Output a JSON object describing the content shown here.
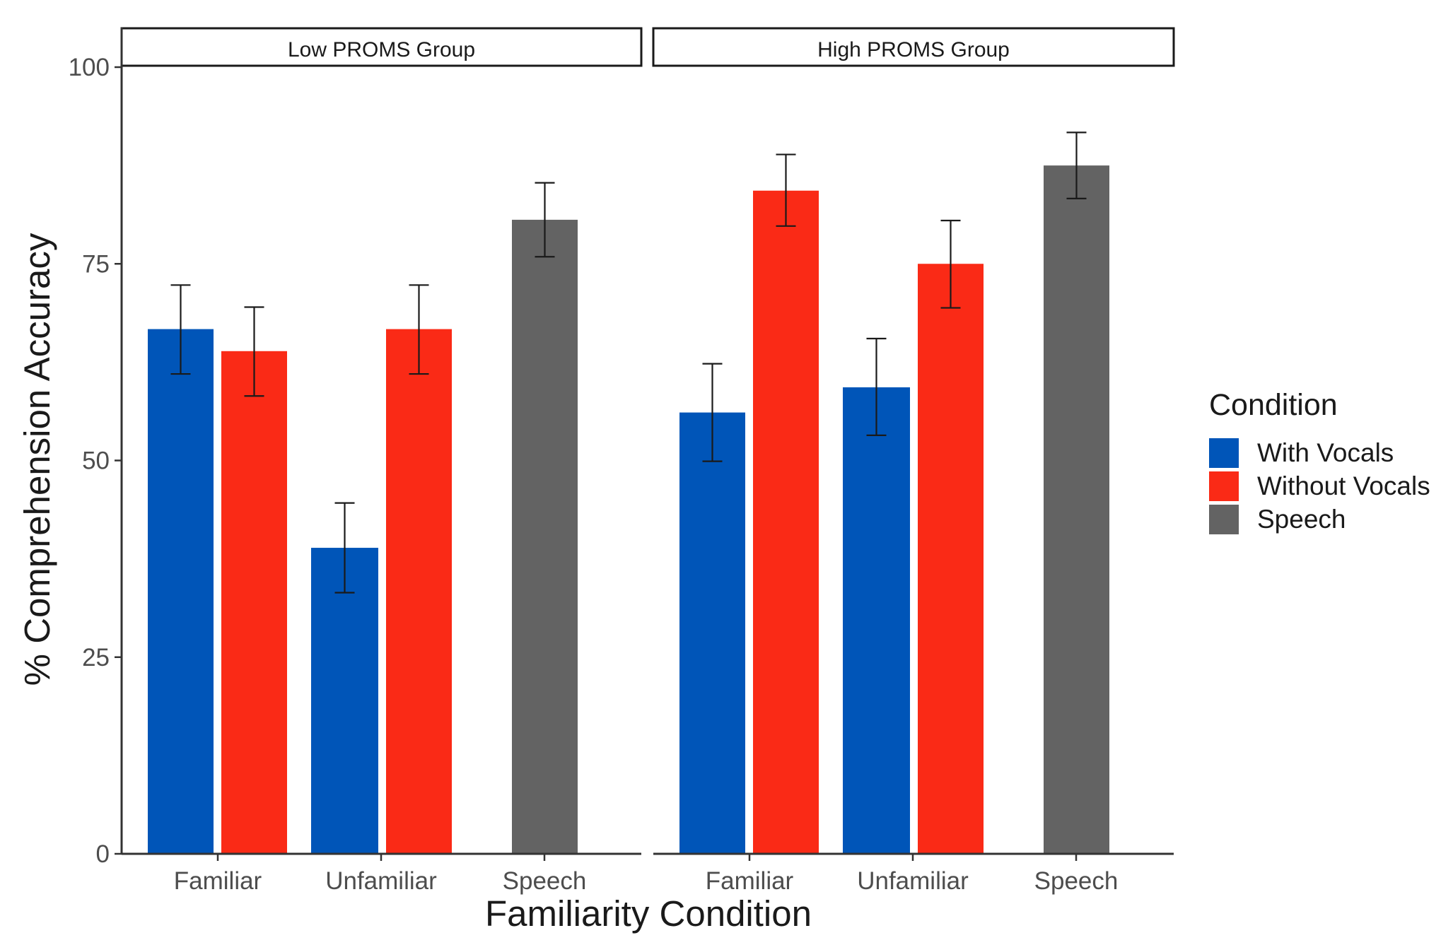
{
  "chart_data": {
    "type": "bar",
    "xlabel": "Familiarity Condition",
    "ylabel": "% Comprehension Accuracy",
    "ylim": [
      0,
      100
    ],
    "yticks": [
      0,
      25,
      50,
      75,
      100
    ],
    "categories": [
      "Familiar",
      "Unfamiliar",
      "Speech"
    ],
    "legend": {
      "title": "Condition",
      "position": "right",
      "entries": [
        {
          "name": "With Vocals",
          "color": "#0055b8"
        },
        {
          "name": "Without Vocals",
          "color": "#fa2a16"
        },
        {
          "name": "Speech",
          "color": "#636363"
        }
      ]
    },
    "panels": [
      {
        "title": "Low PROMS Group",
        "bars": [
          {
            "category": "Familiar",
            "series": "With Vocals",
            "value": 66.7,
            "error_low": 61.0,
            "error_high": 72.3
          },
          {
            "category": "Familiar",
            "series": "Without Vocals",
            "value": 63.9,
            "error_low": 58.2,
            "error_high": 69.5
          },
          {
            "category": "Unfamiliar",
            "series": "With Vocals",
            "value": 38.9,
            "error_low": 33.2,
            "error_high": 44.6
          },
          {
            "category": "Unfamiliar",
            "series": "Without Vocals",
            "value": 66.7,
            "error_low": 61.0,
            "error_high": 72.3
          },
          {
            "category": "Speech",
            "series": "Speech",
            "value": 80.6,
            "error_low": 75.9,
            "error_high": 85.3
          }
        ]
      },
      {
        "title": "High PROMS Group",
        "bars": [
          {
            "category": "Familiar",
            "series": "With Vocals",
            "value": 56.1,
            "error_low": 49.9,
            "error_high": 62.3
          },
          {
            "category": "Familiar",
            "series": "Without Vocals",
            "value": 84.3,
            "error_low": 79.8,
            "error_high": 88.9
          },
          {
            "category": "Unfamiliar",
            "series": "With Vocals",
            "value": 59.3,
            "error_low": 53.2,
            "error_high": 65.5
          },
          {
            "category": "Unfamiliar",
            "series": "Without Vocals",
            "value": 75.0,
            "error_low": 69.4,
            "error_high": 80.5
          },
          {
            "category": "Speech",
            "series": "Speech",
            "value": 87.5,
            "error_low": 83.3,
            "error_high": 91.7
          }
        ]
      }
    ]
  }
}
